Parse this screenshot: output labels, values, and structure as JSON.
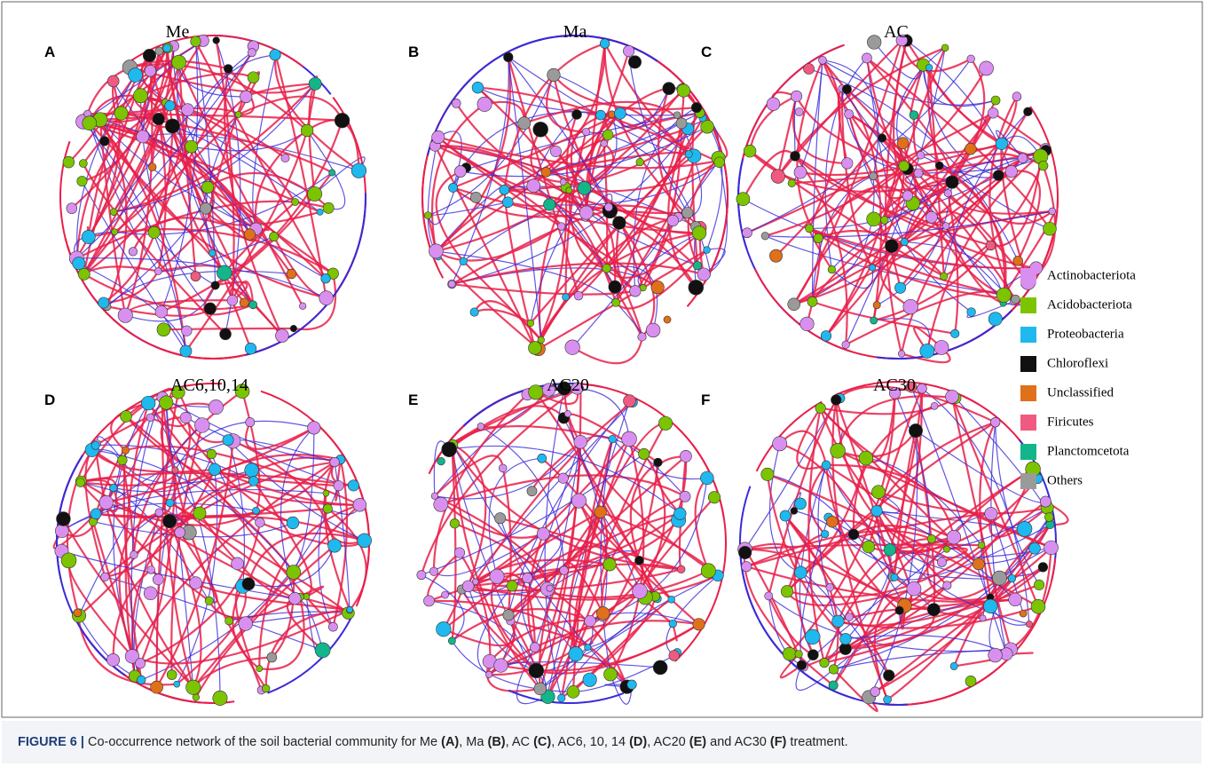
{
  "figure": {
    "panels": [
      {
        "letter": "A",
        "title": "Me"
      },
      {
        "letter": "B",
        "title": "Ma"
      },
      {
        "letter": "C",
        "title": "AC"
      },
      {
        "letter": "D",
        "title": "AC6,10,14"
      },
      {
        "letter": "E",
        "title": "AC20"
      },
      {
        "letter": "F",
        "title": "AC30"
      }
    ],
    "legend": [
      {
        "name": "Actinobacteriota",
        "color": "#d98ff0"
      },
      {
        "name": "Acidobacteriota",
        "color": "#7cc400"
      },
      {
        "name": "Proteobacteria",
        "color": "#1fb8ef"
      },
      {
        "name": "Chloroflexi",
        "color": "#111111"
      },
      {
        "name": "Unclassified",
        "color": "#e0701a"
      },
      {
        "name": "Firicutes",
        "color": "#f05a80"
      },
      {
        "name": "Planctomcetota",
        "color": "#13b58a"
      },
      {
        "name": "Others",
        "color": "#9a9a9a"
      }
    ],
    "caption": [
      {
        "text": "FIGURE 6 |",
        "bold": true
      },
      {
        "text": " Co-occurrence network of the soil bacterial community for Me ",
        "bold": false
      },
      {
        "text": "(A)",
        "bold": true
      },
      {
        "text": ", Ma ",
        "bold": false
      },
      {
        "text": "(B)",
        "bold": true
      },
      {
        "text": ", AC ",
        "bold": false
      },
      {
        "text": "(C)",
        "bold": true
      },
      {
        "text": ", AC6, 10, 14 ",
        "bold": false
      },
      {
        "text": "(D)",
        "bold": true
      },
      {
        "text": ", AC20 ",
        "bold": false
      },
      {
        "text": "(E)",
        "bold": true
      },
      {
        "text": " and AC30 ",
        "bold": false
      },
      {
        "text": "(F)",
        "bold": true
      },
      {
        "text": " treatment.",
        "bold": false
      }
    ]
  }
}
